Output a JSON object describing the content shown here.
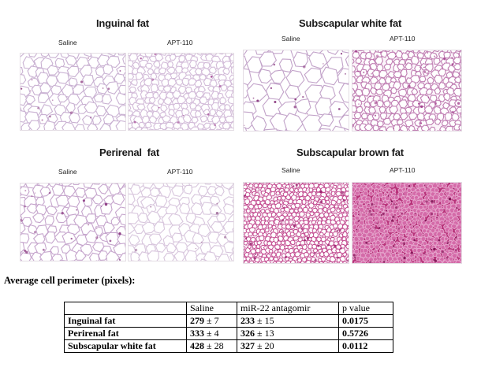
{
  "panels": [
    {
      "title": "Inguinal fat",
      "left_label": "Saline",
      "right_label": "APT-110",
      "left_image": {
        "cell_size": "medium",
        "bg": "#ffffff",
        "stroke": "#c9b1d2",
        "stain": "#9a4f8e",
        "density": 0.2
      },
      "right_image": {
        "cell_size": "small",
        "bg": "#ffffff",
        "stroke": "#d3bcd9",
        "stain": "#a74e98",
        "density": 0.15
      }
    },
    {
      "title": "Subscapular white fat",
      "left_label": "Saline",
      "right_label": "APT-110",
      "left_image": {
        "cell_size": "large",
        "bg": "#ffffff",
        "stroke": "#c2a3c9",
        "stain": "#8c3c82",
        "density": 0.2
      },
      "right_image": {
        "cell_size": "small",
        "bg": "#fbf5fa",
        "stroke": "#c07fb3",
        "stain": "#a23d8c",
        "density": 0.45
      }
    },
    {
      "title": "Perirenal  fat",
      "left_label": "Saline",
      "right_label": "APT-110",
      "left_image": {
        "cell_size": "medium",
        "bg": "#ffffff",
        "stroke": "#c6a6cd",
        "stain": "#8d3d84",
        "density": 0.3
      },
      "right_image": {
        "cell_size": "medium",
        "bg": "#ffffff",
        "stroke": "#d8c6dd",
        "stain": "#a87aa3",
        "density": 0.1
      }
    },
    {
      "title": "Subscapular brown fat",
      "left_label": "Saline",
      "right_label": "APT-110",
      "left_image": {
        "cell_size": "tiny",
        "bg": "#f6e7f2",
        "stroke": "#c24a8f",
        "stain": "#9a1f6d",
        "density": 0.6
      },
      "right_image": {
        "cell_size": "tiny",
        "bg": "#b8337a",
        "stroke": "#e7a8cf",
        "stain": "#7a0e4f",
        "density": 0.9
      }
    }
  ],
  "summary": {
    "title": "Average cell perimeter (pixels):",
    "headers": [
      "",
      "Saline",
      "miR-22 antagomir",
      "p value"
    ],
    "rows": [
      {
        "label": "Inguinal fat",
        "saline_mean": "279",
        "saline_sd": " ± 7",
        "antagomir_mean": "233",
        "antagomir_sd": " ± 15",
        "p": "0.0175"
      },
      {
        "label": "Perirenal fat",
        "saline_mean": "333",
        "saline_sd": " ± 4",
        "antagomir_mean": "326",
        "antagomir_sd": " ± 13",
        "p": "0.5726"
      },
      {
        "label": "Subscapular white fat",
        "saline_mean": "428",
        "saline_sd": " ± 28",
        "antagomir_mean": "327",
        "antagomir_sd": " ± 20",
        "p": "0.0112"
      }
    ]
  }
}
